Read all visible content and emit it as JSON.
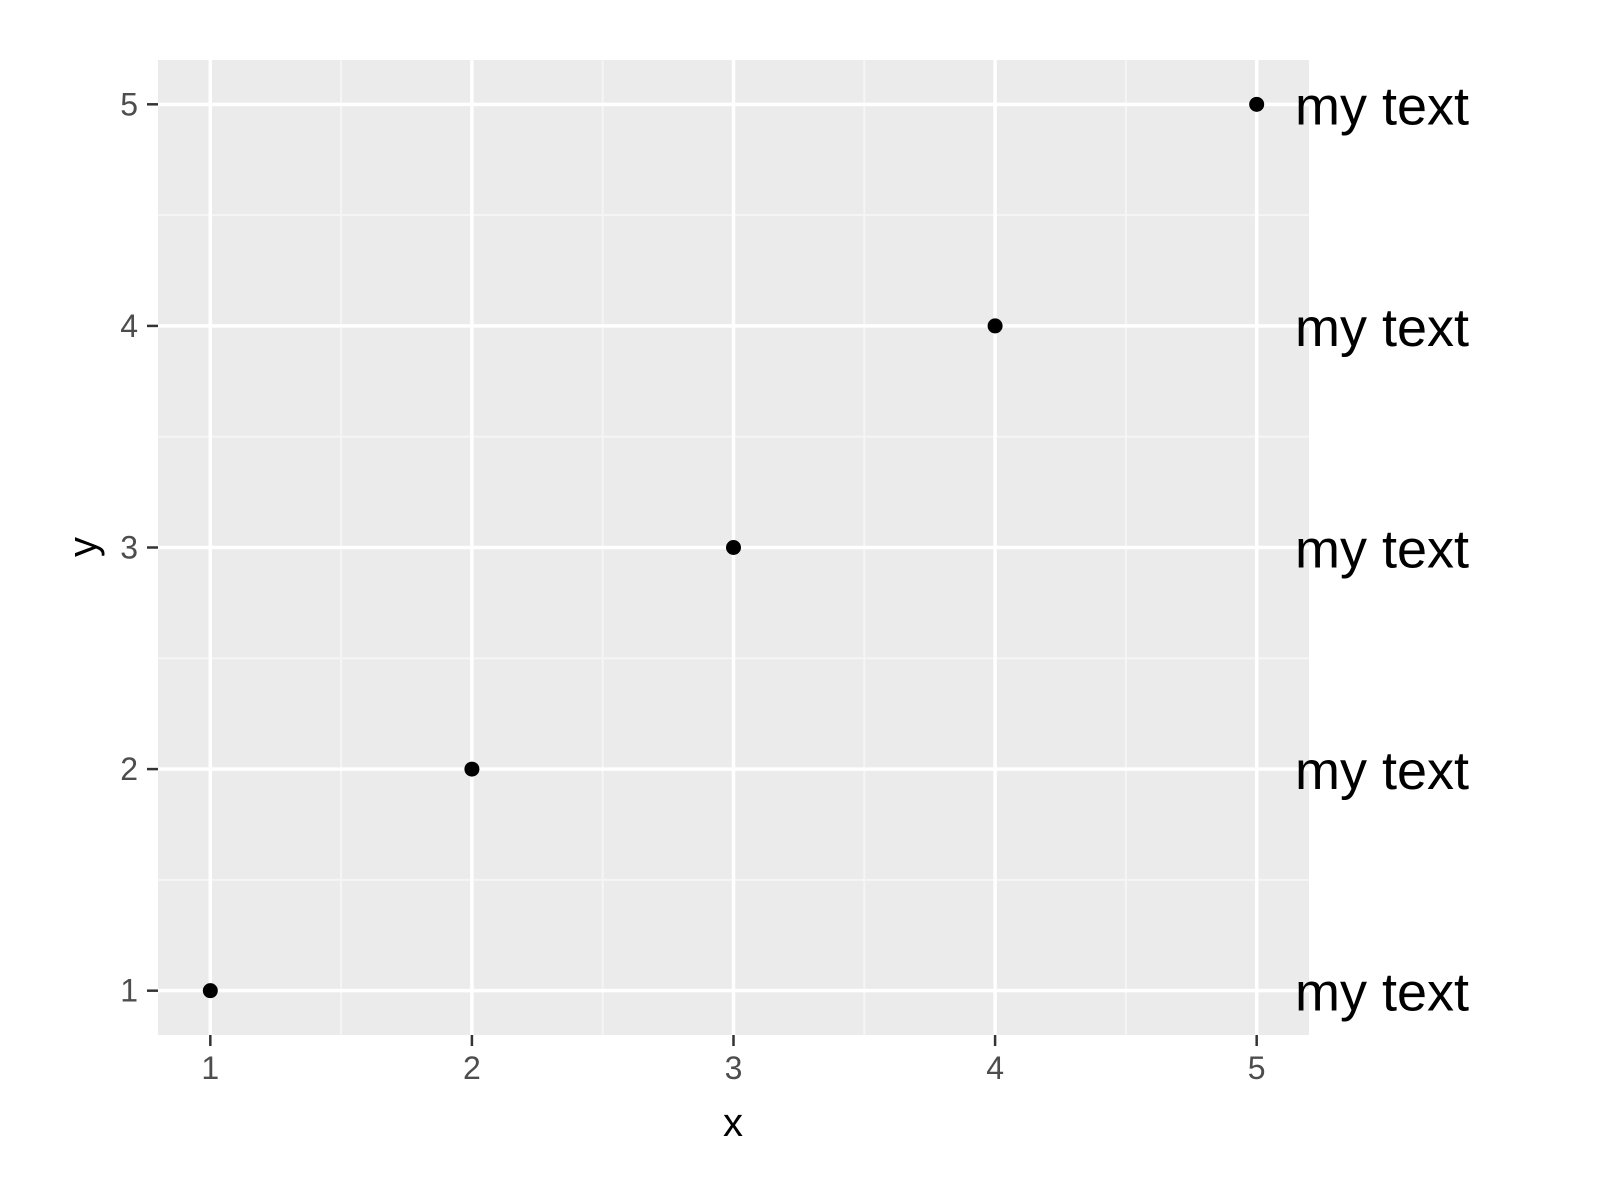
{
  "chart_data": {
    "type": "scatter",
    "title": "",
    "xlabel": "x",
    "ylabel": "y",
    "x": [
      1,
      2,
      3,
      4,
      5
    ],
    "y": [
      1,
      2,
      3,
      4,
      5
    ],
    "point_labels": [
      "my text",
      "my text",
      "my text",
      "my text",
      "my text"
    ],
    "xlim": [
      0.8,
      5.2
    ],
    "ylim": [
      0.8,
      5.2
    ],
    "x_ticks": [
      1,
      2,
      3,
      4,
      5
    ],
    "y_ticks": [
      1,
      2,
      3,
      4,
      5
    ],
    "x_tick_labels": [
      "1",
      "2",
      "3",
      "4",
      "5"
    ],
    "y_tick_labels": [
      "1",
      "2",
      "3",
      "4",
      "5"
    ],
    "grid": true,
    "legend": "none",
    "colors": {
      "panel_background": "#ebebeb",
      "grid_major": "#ffffff",
      "grid_minor": "#f5f5f5",
      "point": "#000000",
      "tick_text": "#4d4d4d",
      "axis_tick": "#333333",
      "label_text": "#000000"
    }
  }
}
